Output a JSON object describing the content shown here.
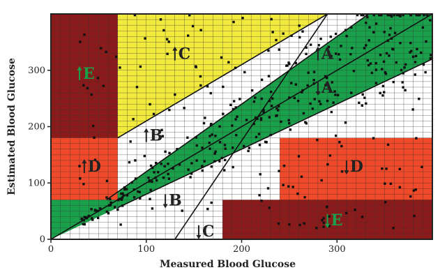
{
  "chart_data": {
    "type": "scatter",
    "xlabel": "Measured Blood Glucose",
    "ylabel": "Estimated Blood Glucose",
    "xlim": [
      0,
      400
    ],
    "ylim": [
      0,
      400
    ],
    "x_ticks": [
      {
        "value": 0,
        "label": "0"
      },
      {
        "value": 100,
        "label": "100"
      },
      {
        "value": 200,
        "label": "200"
      },
      {
        "value": 300,
        "label": "300"
      }
    ],
    "y_ticks": [
      {
        "value": 0,
        "label": "0"
      },
      {
        "value": 100,
        "label": "100"
      },
      {
        "value": 200,
        "label": "200"
      },
      {
        "value": 300,
        "label": "300"
      }
    ],
    "grid": true,
    "zones": [
      {
        "name": "E",
        "color": "#8b1a1a",
        "polygon": [
          [
            0,
            180
          ],
          [
            70,
            180
          ],
          [
            70,
            400
          ],
          [
            0,
            400
          ]
        ]
      },
      {
        "name": "E",
        "color": "#8b1a1a",
        "polygon": [
          [
            180,
            0
          ],
          [
            400,
            0
          ],
          [
            400,
            70
          ],
          [
            180,
            70
          ]
        ]
      },
      {
        "name": "D",
        "color": "#f04a2a",
        "polygon": [
          [
            0,
            70
          ],
          [
            70,
            70
          ],
          [
            70,
            180
          ],
          [
            0,
            180
          ]
        ]
      },
      {
        "name": "D",
        "color": "#f04a2a",
        "polygon": [
          [
            240,
            70
          ],
          [
            400,
            70
          ],
          [
            400,
            180
          ],
          [
            240,
            180
          ]
        ]
      },
      {
        "name": "C",
        "color": "#f2ea3c",
        "polygon": [
          [
            70,
            180
          ],
          [
            70,
            400
          ],
          [
            290,
            400
          ]
        ]
      },
      {
        "name": "C",
        "color": "#ffffff",
        "polygon": [
          [
            130,
            0
          ],
          [
            180,
            0
          ],
          [
            180,
            70
          ]
        ]
      },
      {
        "name": "A",
        "color": "#1aa04a",
        "polygon": [
          [
            0,
            0
          ],
          [
            0,
            70
          ],
          [
            58.33,
            70
          ],
          [
            400,
            480
          ],
          [
            400,
            320
          ]
        ]
      },
      {
        "name": "B",
        "color": "#ffffff",
        "polygon": [
          [
            70,
            0
          ],
          [
            400,
            0
          ],
          [
            400,
            400
          ],
          [
            0,
            400
          ],
          [
            0,
            70
          ]
        ]
      }
    ],
    "zone_labels": [
      {
        "text": "E",
        "arrow": "up",
        "x": 30,
        "y": 290,
        "color": "#1aa04a"
      },
      {
        "text": "E",
        "arrow": "down",
        "x": 290,
        "y": 30,
        "color": "#1aa04a"
      },
      {
        "text": "D",
        "arrow": "up",
        "x": 35,
        "y": 125,
        "color": "#222222"
      },
      {
        "text": "D",
        "arrow": "down",
        "x": 310,
        "y": 125,
        "color": "#222222"
      },
      {
        "text": "C",
        "arrow": "up",
        "x": 130,
        "y": 325,
        "color": "#222222"
      },
      {
        "text": "C",
        "arrow": "down",
        "x": 155,
        "y": 10,
        "color": "#222222"
      },
      {
        "text": "B",
        "arrow": "up",
        "x": 100,
        "y": 180,
        "color": "#222222"
      },
      {
        "text": "B",
        "arrow": "down",
        "x": 120,
        "y": 65,
        "color": "#222222"
      },
      {
        "text": "A",
        "arrow": "up",
        "x": 280,
        "y": 325,
        "color": "#222222"
      },
      {
        "text": "A",
        "arrow": "down",
        "x": 280,
        "y": 265,
        "color": "#222222"
      }
    ],
    "lines": [
      {
        "from": [
          0,
          0
        ],
        "to": [
          400,
          400
        ]
      },
      {
        "from": [
          58.33,
          70
        ],
        "to": [
          400,
          480
        ]
      },
      {
        "from": [
          70,
          56
        ],
        "to": [
          400,
          320
        ]
      },
      {
        "from": [
          130,
          0
        ],
        "to": [
          290,
          400
        ]
      },
      {
        "from": [
          70,
          180
        ],
        "to": [
          290,
          400
        ]
      }
    ]
  }
}
